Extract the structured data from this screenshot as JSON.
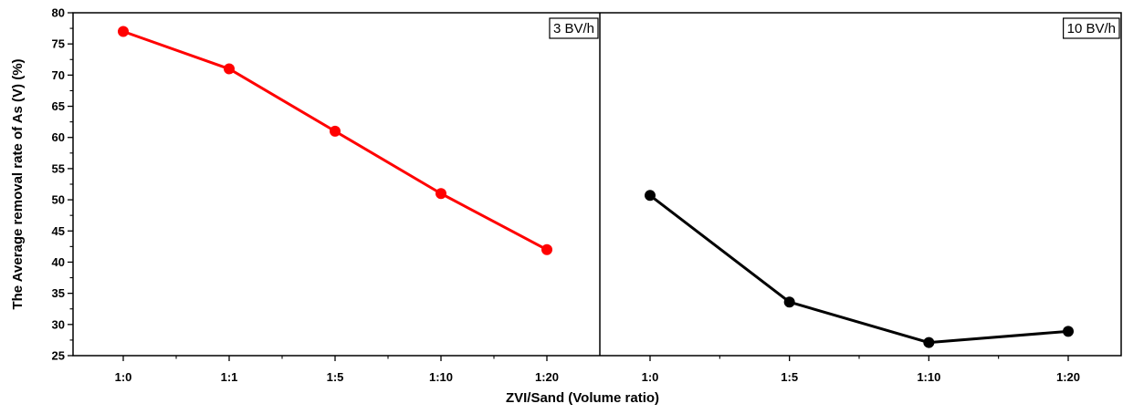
{
  "chart_data": {
    "type": "line",
    "ylabel": "The Average removal rate of As (V) (%)",
    "xlabel": "ZVI/Sand (Volume ratio)",
    "ylim": [
      25,
      80
    ],
    "yticks": [
      25,
      30,
      35,
      40,
      45,
      50,
      55,
      60,
      65,
      70,
      75,
      80
    ],
    "grid": false,
    "panels": [
      {
        "label": "3 BV/h",
        "color": "#ff0000",
        "categories": [
          "1:0",
          "1:1",
          "1:5",
          "1:10",
          "1:20"
        ],
        "values": [
          77,
          71,
          61,
          51,
          42
        ]
      },
      {
        "label": "10 BV/h",
        "color": "#000000",
        "categories": [
          "1:0",
          "1:5",
          "1:10",
          "1:20"
        ],
        "values": [
          50.7,
          33.6,
          27.1,
          28.9
        ]
      }
    ]
  }
}
